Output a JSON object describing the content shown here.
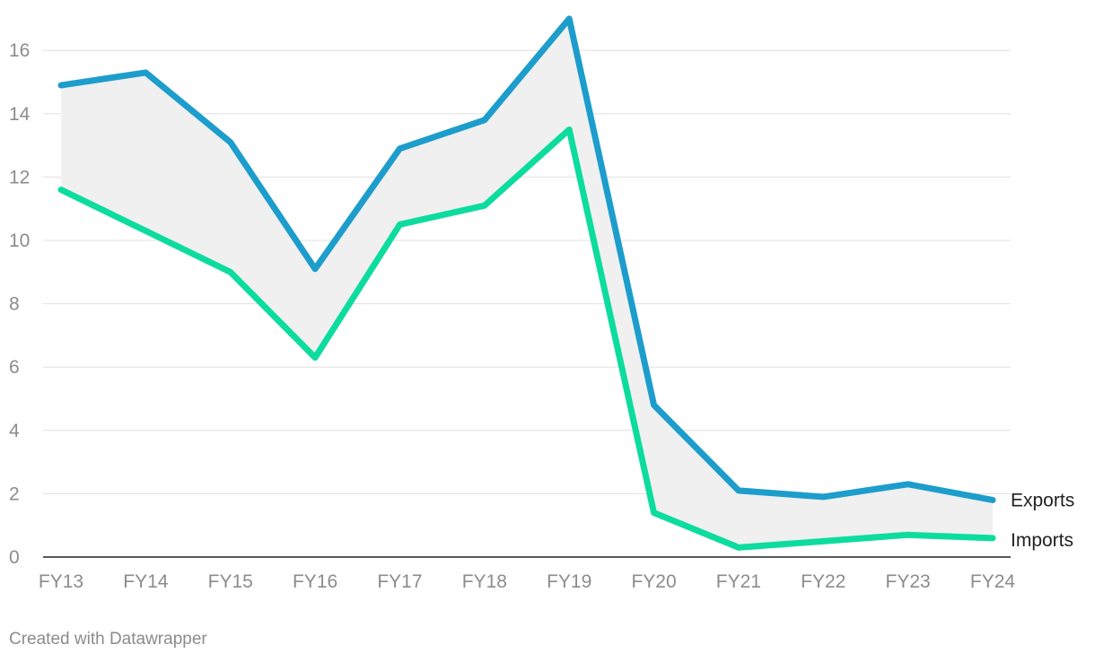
{
  "chart_data": {
    "type": "line",
    "categories": [
      "FY13",
      "FY14",
      "FY15",
      "FY16",
      "FY17",
      "FY18",
      "FY19",
      "FY20",
      "FY21",
      "FY22",
      "FY23",
      "FY24"
    ],
    "series": [
      {
        "name": "Exports",
        "values": [
          14.9,
          15.3,
          13.1,
          9.1,
          12.9,
          13.8,
          17.0,
          4.8,
          2.1,
          1.9,
          2.3,
          1.8
        ],
        "color": "#1d9dcc"
      },
      {
        "name": "Imports",
        "values": [
          11.6,
          10.3,
          9.0,
          6.3,
          10.5,
          11.1,
          13.5,
          1.4,
          0.3,
          0.5,
          0.7,
          0.6
        ],
        "color": "#0ddc9f"
      }
    ],
    "yticks": [
      "0",
      "2",
      "4",
      "6",
      "8",
      "10",
      "12",
      "14",
      "16"
    ],
    "ylim": [
      0,
      17
    ],
    "grid": true,
    "area_between_series": true,
    "area_color": "#f0f0f0"
  },
  "footer": "Created with Datawrapper"
}
